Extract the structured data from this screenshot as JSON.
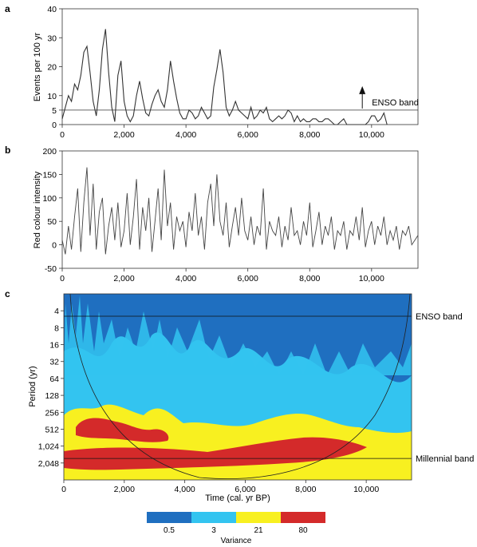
{
  "chart_data": [
    {
      "panel": "a",
      "type": "line",
      "ylabel": "Events per 100 yr",
      "xlim": [
        0,
        11500
      ],
      "ylim": [
        0,
        40
      ],
      "x_ticks": [
        0,
        2000,
        4000,
        6000,
        8000,
        10000
      ],
      "x_tick_labels": [
        "0",
        "2,000",
        "4,000",
        "6,000",
        "8,000",
        "10,000"
      ],
      "y_ticks": [
        0,
        5,
        10,
        20,
        30,
        40
      ],
      "threshold": 5,
      "annotation": "ENSO band",
      "arrow_x": 9700,
      "series": [
        {
          "x": [
            0,
            100,
            200,
            300,
            400,
            500,
            600,
            700,
            800,
            900,
            1000,
            1100,
            1200,
            1300,
            1400,
            1500,
            1600,
            1700,
            1800,
            1900,
            2000,
            2100,
            2200,
            2300,
            2400,
            2500,
            2600,
            2700,
            2800,
            2900,
            3000,
            3100,
            3200,
            3300,
            3400,
            3500,
            3600,
            3700,
            3800,
            3900,
            4000,
            4100,
            4200,
            4300,
            4400,
            4500,
            4600,
            4700,
            4800,
            4900,
            5000,
            5100,
            5200,
            5300,
            5400,
            5500,
            5600,
            5700,
            5800,
            5900,
            6000,
            6100,
            6200,
            6300,
            6400,
            6500,
            6600,
            6700,
            6800,
            6900,
            7000,
            7100,
            7200,
            7300,
            7400,
            7500,
            7600,
            7700,
            7800,
            7900,
            8000,
            8100,
            8200,
            8300,
            8400,
            8500,
            8600,
            8700,
            8800,
            8900,
            9000,
            9100,
            9200,
            9300,
            9400,
            9500,
            9600,
            9700,
            9800,
            9900,
            10000,
            10100,
            10200,
            10300,
            10400,
            10500
          ],
          "values": [
            2,
            6,
            10,
            8,
            14,
            12,
            17,
            25,
            27,
            18,
            8,
            3,
            12,
            26,
            33,
            18,
            6,
            1,
            17,
            22,
            8,
            3,
            1,
            3,
            10,
            15,
            9,
            4,
            3,
            7,
            10,
            12,
            8,
            6,
            12,
            22,
            15,
            9,
            4,
            2,
            2,
            5,
            4,
            2,
            3,
            6,
            4,
            2,
            3,
            13,
            19,
            26,
            18,
            6,
            3,
            5,
            8,
            5,
            4,
            3,
            2,
            6,
            2,
            3,
            5,
            4,
            6,
            2,
            1,
            2,
            3,
            2,
            3,
            5,
            4,
            1,
            3,
            1,
            2,
            1,
            1,
            2,
            2,
            1,
            1,
            2,
            2,
            1,
            0,
            0,
            1,
            2,
            0,
            0,
            0,
            0,
            0,
            0,
            0,
            1,
            3,
            3,
            1,
            2,
            4,
            0
          ]
        }
      ]
    },
    {
      "panel": "b",
      "type": "line",
      "ylabel": "Red colour intensity",
      "xlim": [
        0,
        11500
      ],
      "ylim": [
        -50,
        200
      ],
      "x_ticks": [
        0,
        2000,
        4000,
        6000,
        8000,
        10000
      ],
      "x_tick_labels": [
        "0",
        "2,000",
        "4,000",
        "6,000",
        "8,000",
        "10,000"
      ],
      "y_ticks": [
        -50,
        0,
        50,
        100,
        150,
        200
      ],
      "series": [
        {
          "x": [
            0,
            100,
            200,
            300,
            400,
            500,
            600,
            700,
            800,
            900,
            1000,
            1100,
            1200,
            1300,
            1400,
            1500,
            1600,
            1700,
            1800,
            1900,
            2000,
            2100,
            2200,
            2300,
            2400,
            2500,
            2600,
            2700,
            2800,
            2900,
            3000,
            3100,
            3200,
            3300,
            3400,
            3500,
            3600,
            3700,
            3800,
            3900,
            4000,
            4100,
            4200,
            4300,
            4400,
            4500,
            4600,
            4700,
            4800,
            4900,
            5000,
            5100,
            5200,
            5300,
            5400,
            5500,
            5600,
            5700,
            5800,
            5900,
            6000,
            6100,
            6200,
            6300,
            6400,
            6500,
            6600,
            6700,
            6800,
            6900,
            7000,
            7100,
            7200,
            7300,
            7400,
            7500,
            7600,
            7700,
            7800,
            7900,
            8000,
            8100,
            8200,
            8300,
            8400,
            8500,
            8600,
            8700,
            8800,
            8900,
            9000,
            9100,
            9200,
            9300,
            9400,
            9500,
            9600,
            9700,
            9800,
            9900,
            10000,
            10100,
            10200,
            10300,
            10400,
            10500,
            10600,
            10700,
            10800,
            10900,
            11000,
            11100,
            11200,
            11300,
            11400,
            11500
          ],
          "values": [
            10,
            -20,
            40,
            -10,
            60,
            120,
            -15,
            90,
            165,
            20,
            130,
            -10,
            70,
            100,
            -20,
            40,
            80,
            10,
            90,
            -5,
            30,
            110,
            0,
            60,
            140,
            -10,
            80,
            30,
            100,
            -15,
            50,
            120,
            10,
            160,
            40,
            90,
            -10,
            60,
            30,
            50,
            -5,
            70,
            30,
            110,
            20,
            60,
            -10,
            90,
            130,
            40,
            150,
            50,
            20,
            90,
            -5,
            40,
            80,
            20,
            100,
            30,
            10,
            60,
            0,
            40,
            20,
            120,
            -10,
            50,
            30,
            20,
            60,
            -5,
            40,
            10,
            80,
            20,
            30,
            0,
            50,
            20,
            90,
            -5,
            30,
            70,
            0,
            40,
            20,
            60,
            -10,
            30,
            20,
            50,
            -10,
            30,
            20,
            60,
            10,
            80,
            -5,
            30,
            50,
            0,
            40,
            20,
            60,
            0,
            30,
            10,
            40,
            -10,
            30,
            20,
            40,
            0,
            10,
            20
          ]
        }
      ]
    },
    {
      "panel": "c",
      "type": "heatmap",
      "xlabel": "Time (cal. yr BP)",
      "ylabel": "Period (yr)",
      "xlim": [
        0,
        11500
      ],
      "x_ticks": [
        0,
        2000,
        4000,
        6000,
        8000,
        10000
      ],
      "x_tick_labels": [
        "0",
        "2,000",
        "4,000",
        "6,000",
        "8,000",
        "10,000"
      ],
      "y_ticks": [
        4,
        8,
        16,
        32,
        64,
        128,
        256,
        512,
        1024,
        2048
      ],
      "y_tick_labels": [
        "4",
        "8",
        "16",
        "32",
        "64",
        "128",
        "256",
        "512",
        "1,024",
        "2,048"
      ],
      "band_lines": [
        {
          "label": "ENSO band",
          "period": 5
        },
        {
          "label": "Millennial band",
          "period": 1700
        }
      ],
      "colorbar": {
        "title": "Variance",
        "levels": [
          "0.5",
          "3",
          "21",
          "80"
        ],
        "colors": [
          "#1f6fc0",
          "#33c4f0",
          "#f8f020",
          "#d42a2a"
        ]
      }
    }
  ],
  "colors": {
    "line": "#333333",
    "axis": "#222222",
    "dark_blue": "#1f6fc0",
    "light_blue": "#33c4f0",
    "yellow": "#f8f020",
    "red": "#d42a2a"
  }
}
